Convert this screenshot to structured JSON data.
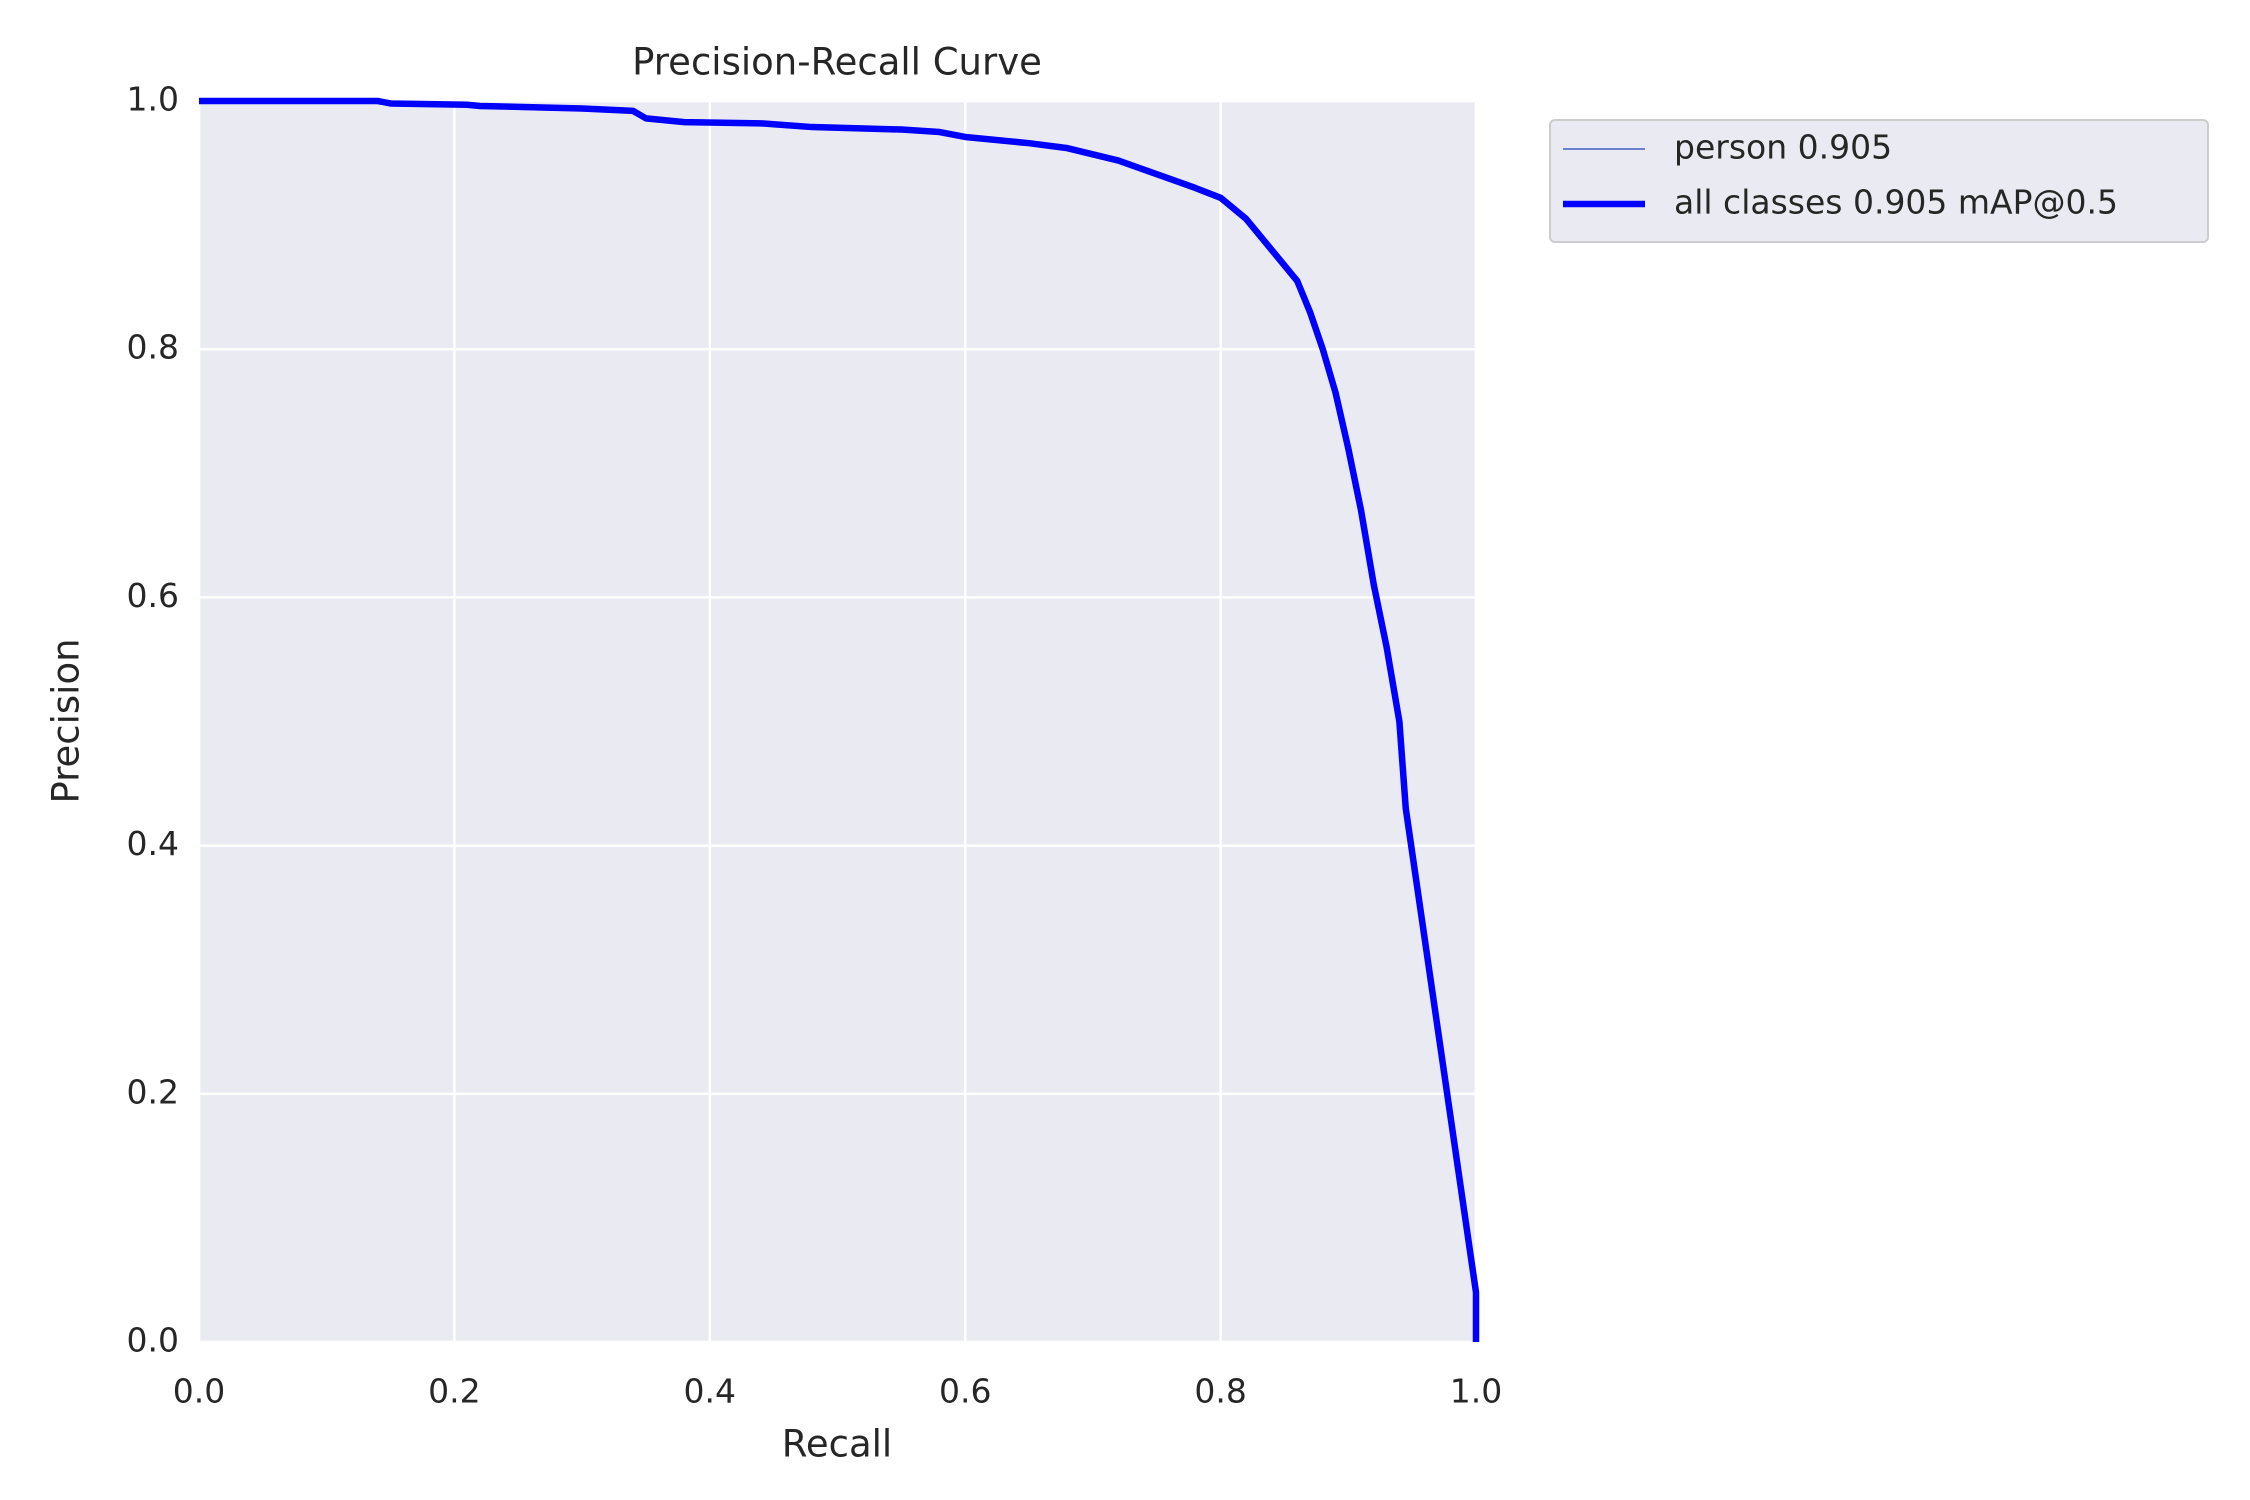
{
  "chart_data": {
    "type": "line",
    "title": "Precision-Recall Curve",
    "xlabel": "Recall",
    "ylabel": "Precision",
    "x": [
      0,
      0.14,
      0.15,
      0.21,
      0.22,
      0.3,
      0.34,
      0.35,
      0.38,
      0.44,
      0.48,
      0.55,
      0.58,
      0.6,
      0.65,
      0.68,
      0.72,
      0.75,
      0.78,
      0.8,
      0.82,
      0.84,
      0.86,
      0.87,
      0.88,
      0.89,
      0.9,
      0.91,
      0.92,
      0.93,
      0.94,
      0.945,
      1.0,
      1.0
    ],
    "series": [
      {
        "name": "person 0.905",
        "color": "#4060c0",
        "width": 1.5,
        "values": [
          1.0,
          1.0,
          0.998,
          0.997,
          0.996,
          0.994,
          0.992,
          0.986,
          0.983,
          0.982,
          0.979,
          0.977,
          0.975,
          0.971,
          0.966,
          0.962,
          0.952,
          0.941,
          0.93,
          0.922,
          0.905,
          0.88,
          0.855,
          0.83,
          0.8,
          0.765,
          0.72,
          0.67,
          0.61,
          0.56,
          0.5,
          0.43,
          0.04,
          0.0
        ]
      },
      {
        "name": "all classes 0.905 mAP@0.5",
        "color": "#0000ff",
        "width": 6.5,
        "values": [
          1.0,
          1.0,
          0.998,
          0.997,
          0.996,
          0.994,
          0.992,
          0.986,
          0.983,
          0.982,
          0.979,
          0.977,
          0.975,
          0.971,
          0.966,
          0.962,
          0.952,
          0.941,
          0.93,
          0.922,
          0.905,
          0.88,
          0.855,
          0.83,
          0.8,
          0.765,
          0.72,
          0.67,
          0.61,
          0.56,
          0.5,
          0.43,
          0.04,
          0.0
        ]
      }
    ],
    "xlim": [
      0,
      1
    ],
    "ylim": [
      0,
      1
    ],
    "xticks": [
      {
        "value": 0,
        "label": "0.0"
      },
      0.2,
      0.4,
      0.6,
      0.8,
      {
        "value": 1,
        "label": "1.0"
      }
    ],
    "yticks": [
      {
        "value": 0,
        "label": "0.0"
      },
      0.2,
      0.4,
      0.6,
      0.8,
      {
        "value": 1,
        "label": "1.0"
      }
    ],
    "grid": true,
    "legend": "outside upper right"
  }
}
